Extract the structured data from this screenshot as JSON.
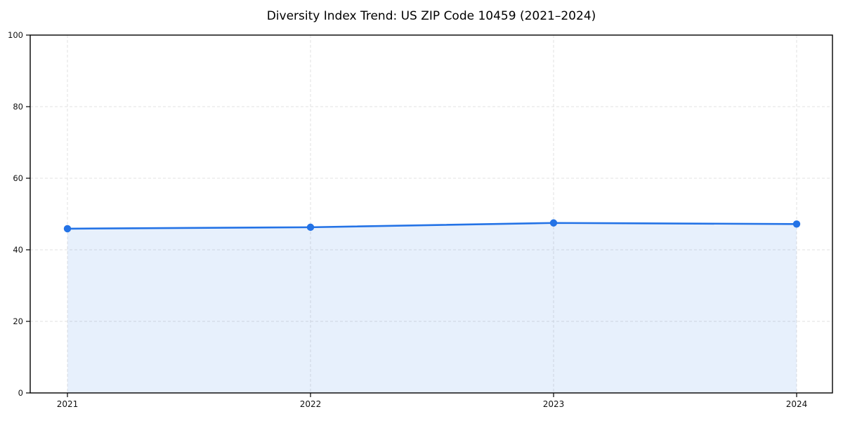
{
  "chart_data": {
    "type": "area",
    "title": "Diversity Index Trend: US ZIP Code 10459 (2021–2024)",
    "x": [
      2021,
      2022,
      2023,
      2024
    ],
    "xtick_labels": [
      "2021",
      "2022",
      "2023",
      "2024"
    ],
    "series": [
      {
        "name": "Diversity Index",
        "values": [
          45.9,
          46.3,
          47.5,
          47.2
        ]
      }
    ],
    "xlabel": "",
    "ylabel": "",
    "ylim": [
      0,
      100
    ],
    "yticks": [
      0,
      20,
      40,
      60,
      80,
      100
    ],
    "grid": "on",
    "grid_style": "dashed",
    "legend_position": "none",
    "colors": {
      "line": "#2473e6",
      "marker": "#2473e6",
      "fill": "rgba(36,115,230,0.11)",
      "grid": "#e1e1e1",
      "spine": "#000000",
      "tick_label": "#111111",
      "title": "#000000"
    }
  }
}
